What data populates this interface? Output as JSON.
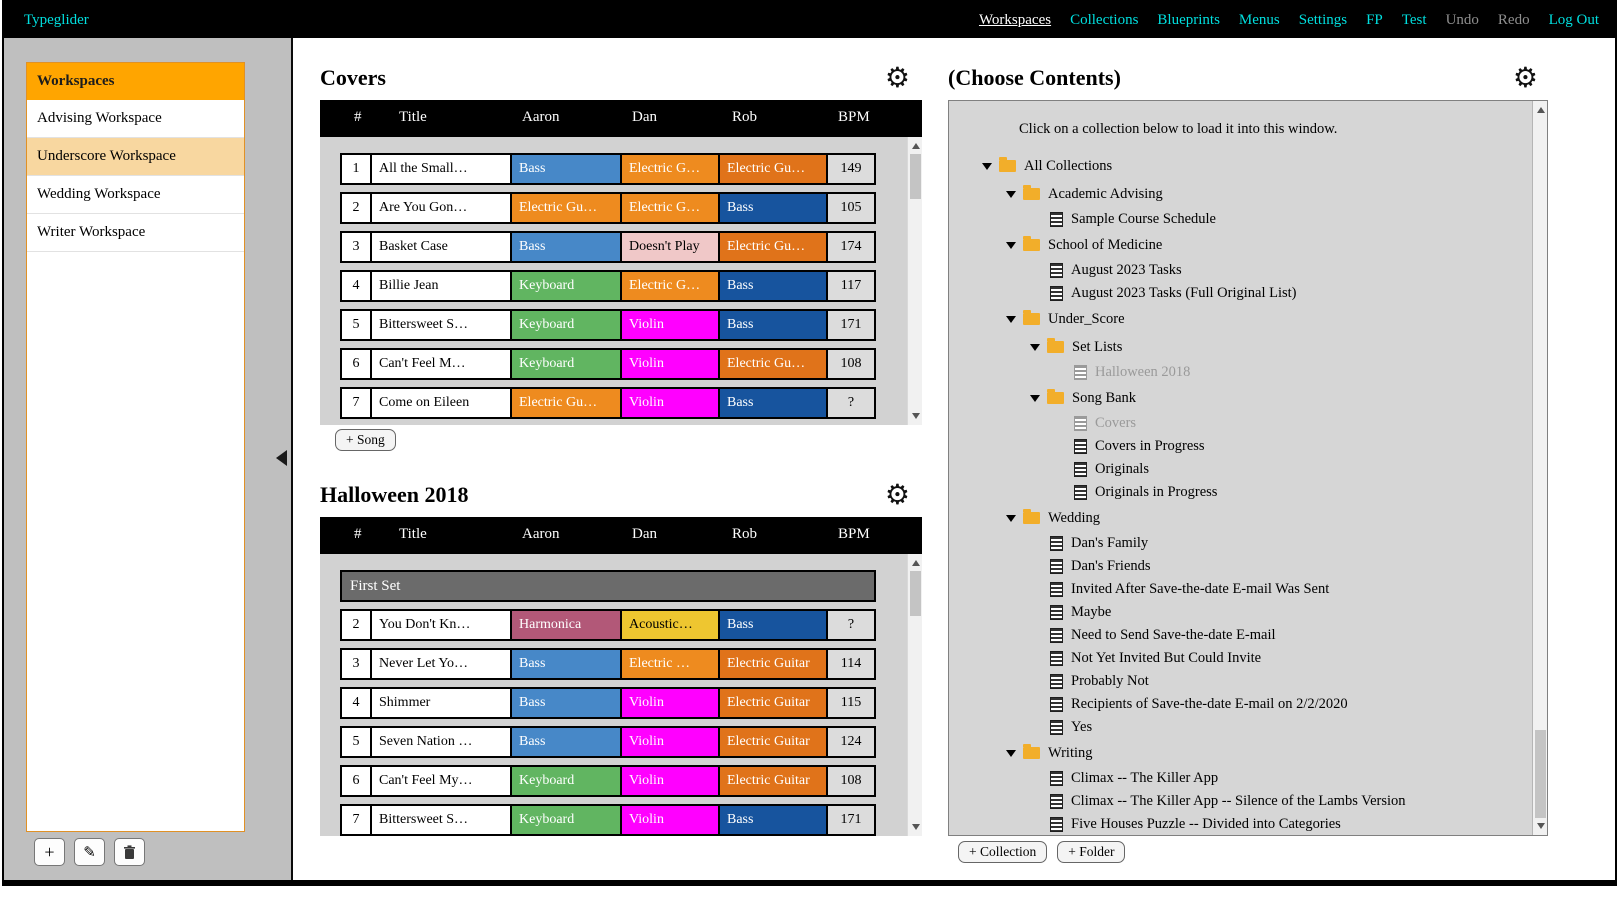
{
  "topbar": {
    "brand": "Typeglider",
    "nav": [
      {
        "label": "Workspaces",
        "state": "active"
      },
      {
        "label": "Collections",
        "state": "link"
      },
      {
        "label": "Blueprints",
        "state": "link"
      },
      {
        "label": "Menus",
        "state": "link"
      },
      {
        "label": "Settings",
        "state": "link"
      },
      {
        "label": "FP",
        "state": "link"
      },
      {
        "label": "Test",
        "state": "link"
      },
      {
        "label": "Undo",
        "state": "disabled"
      },
      {
        "label": "Redo",
        "state": "disabled"
      },
      {
        "label": "Log Out",
        "state": "link"
      }
    ]
  },
  "icons": {
    "gear": "⚙",
    "plus": "+",
    "pencil": "✎"
  },
  "sidebar": {
    "header": "Workspaces",
    "items": [
      {
        "label": "Advising Workspace",
        "selected": false
      },
      {
        "label": "Underscore Workspace",
        "selected": true
      },
      {
        "label": "Wedding Workspace",
        "selected": false
      },
      {
        "label": "Writer Workspace",
        "selected": false
      }
    ]
  },
  "colors": {
    "bass_light": "#4788c8",
    "bass_dark": "#17549e",
    "electric": "#ee8b1f",
    "electric_deep": "#e0731a",
    "keyboard": "#61b561",
    "violin": "#ff00ff",
    "doesnt_play": "#f0c8c8",
    "harmonica": "#b25878",
    "acoustic": "#eec630"
  },
  "song_tables": [
    {
      "title": "Covers",
      "columns": [
        "#",
        "Title",
        "Aaron",
        "Dan",
        "Rob",
        "BPM"
      ],
      "add_button": "+ Song",
      "rows": [
        {
          "num": "1",
          "title": "All the Small…",
          "aaron": {
            "t": "Bass",
            "c": "bass_light"
          },
          "dan": {
            "t": "Electric G…",
            "c": "electric"
          },
          "rob": {
            "t": "Electric Gu…",
            "c": "electric_deep"
          },
          "bpm": "149"
        },
        {
          "num": "2",
          "title": "Are You Gon…",
          "aaron": {
            "t": "Electric Gu…",
            "c": "electric"
          },
          "dan": {
            "t": "Electric G…",
            "c": "electric"
          },
          "rob": {
            "t": "Bass",
            "c": "bass_dark"
          },
          "bpm": "105"
        },
        {
          "num": "3",
          "title": "Basket Case",
          "aaron": {
            "t": "Bass",
            "c": "bass_light"
          },
          "dan": {
            "t": "Doesn't Play",
            "c": "doesnt_play",
            "fg": "dark"
          },
          "rob": {
            "t": "Electric Gu…",
            "c": "electric_deep"
          },
          "bpm": "174"
        },
        {
          "num": "4",
          "title": "Billie Jean",
          "aaron": {
            "t": "Keyboard",
            "c": "keyboard"
          },
          "dan": {
            "t": "Electric G…",
            "c": "electric"
          },
          "rob": {
            "t": "Bass",
            "c": "bass_dark"
          },
          "bpm": "117"
        },
        {
          "num": "5",
          "title": "Bittersweet S…",
          "aaron": {
            "t": "Keyboard",
            "c": "keyboard"
          },
          "dan": {
            "t": "Violin",
            "c": "violin"
          },
          "rob": {
            "t": "Bass",
            "c": "bass_dark"
          },
          "bpm": "171"
        },
        {
          "num": "6",
          "title": "Can't Feel M…",
          "aaron": {
            "t": "Keyboard",
            "c": "keyboard"
          },
          "dan": {
            "t": "Violin",
            "c": "violin"
          },
          "rob": {
            "t": "Electric Gu…",
            "c": "electric_deep"
          },
          "bpm": "108"
        },
        {
          "num": "7",
          "title": "Come on Eileen",
          "aaron": {
            "t": "Electric Gu…",
            "c": "electric"
          },
          "dan": {
            "t": "Violin",
            "c": "violin"
          },
          "rob": {
            "t": "Bass",
            "c": "bass_dark"
          },
          "bpm": "?"
        }
      ]
    },
    {
      "title": "Halloween 2018",
      "columns": [
        "#",
        "Title",
        "Aaron",
        "Dan",
        "Rob",
        "BPM"
      ],
      "rows": [
        {
          "section": "First Set"
        },
        {
          "num": "2",
          "title": "You Don't Kn…",
          "aaron": {
            "t": "Harmonica",
            "c": "harmonica"
          },
          "dan": {
            "t": "Acoustic…",
            "c": "acoustic",
            "fg": "dark"
          },
          "rob": {
            "t": "Bass",
            "c": "bass_dark"
          },
          "bpm": "?"
        },
        {
          "num": "3",
          "title": "Never Let Yo…",
          "aaron": {
            "t": "Bass",
            "c": "bass_light"
          },
          "dan": {
            "t": "Electric …",
            "c": "electric"
          },
          "rob": {
            "t": "Electric Guitar",
            "c": "electric_deep"
          },
          "bpm": "114"
        },
        {
          "num": "4",
          "title": "Shimmer",
          "aaron": {
            "t": "Bass",
            "c": "bass_light"
          },
          "dan": {
            "t": "Violin",
            "c": "violin"
          },
          "rob": {
            "t": "Electric Guitar",
            "c": "electric_deep"
          },
          "bpm": "115"
        },
        {
          "num": "5",
          "title": "Seven Nation …",
          "aaron": {
            "t": "Bass",
            "c": "bass_light"
          },
          "dan": {
            "t": "Violin",
            "c": "violin"
          },
          "rob": {
            "t": "Electric Guitar",
            "c": "electric_deep"
          },
          "bpm": "124"
        },
        {
          "num": "6",
          "title": "Can't Feel My…",
          "aaron": {
            "t": "Keyboard",
            "c": "keyboard"
          },
          "dan": {
            "t": "Violin",
            "c": "violin"
          },
          "rob": {
            "t": "Electric Guitar",
            "c": "electric_deep"
          },
          "bpm": "108"
        },
        {
          "num": "7",
          "title": "Bittersweet S…",
          "aaron": {
            "t": "Keyboard",
            "c": "keyboard"
          },
          "dan": {
            "t": "Violin",
            "c": "violin"
          },
          "rob": {
            "t": "Bass",
            "c": "bass_dark"
          },
          "bpm": "171"
        }
      ]
    }
  ],
  "collections": {
    "title": "(Choose Contents)",
    "instruction": "Click on a collection below to load it into this window.",
    "buttons": {
      "add_collection": "+ Collection",
      "add_folder": "+ Folder"
    },
    "tree": [
      {
        "type": "folder",
        "level": 0,
        "label": "All Collections"
      },
      {
        "type": "folder",
        "level": 1,
        "label": "Academic Advising"
      },
      {
        "type": "leaf",
        "level": 2,
        "label": "Sample Course Schedule"
      },
      {
        "type": "folder",
        "level": 1,
        "label": "School of Medicine"
      },
      {
        "type": "leaf",
        "level": 2,
        "label": "August 2023 Tasks"
      },
      {
        "type": "leaf",
        "level": 2,
        "label": "August 2023 Tasks (Full Original List)"
      },
      {
        "type": "folder",
        "level": 1,
        "label": "Under_Score"
      },
      {
        "type": "folder",
        "level": 2,
        "label": "Set Lists"
      },
      {
        "type": "leaf",
        "level": 3,
        "label": "Halloween 2018",
        "disabled": true
      },
      {
        "type": "folder",
        "level": 2,
        "label": "Song Bank"
      },
      {
        "type": "leaf",
        "level": 3,
        "label": "Covers",
        "disabled": true
      },
      {
        "type": "leaf",
        "level": 3,
        "label": "Covers in Progress"
      },
      {
        "type": "leaf",
        "level": 3,
        "label": "Originals"
      },
      {
        "type": "leaf",
        "level": 3,
        "label": "Originals in Progress"
      },
      {
        "type": "folder",
        "level": 1,
        "label": "Wedding"
      },
      {
        "type": "leaf",
        "level": 2,
        "label": "Dan's Family"
      },
      {
        "type": "leaf",
        "level": 2,
        "label": "Dan's Friends"
      },
      {
        "type": "leaf",
        "level": 2,
        "label": "Invited After Save-the-date E-mail Was Sent"
      },
      {
        "type": "leaf",
        "level": 2,
        "label": "Maybe"
      },
      {
        "type": "leaf",
        "level": 2,
        "label": "Need to Send Save-the-date E-mail"
      },
      {
        "type": "leaf",
        "level": 2,
        "label": "Not Yet Invited But Could Invite"
      },
      {
        "type": "leaf",
        "level": 2,
        "label": "Probably Not"
      },
      {
        "type": "leaf",
        "level": 2,
        "label": "Recipients of Save-the-date E-mail on 2/2/2020"
      },
      {
        "type": "leaf",
        "level": 2,
        "label": "Yes"
      },
      {
        "type": "folder",
        "level": 1,
        "label": "Writing"
      },
      {
        "type": "leaf",
        "level": 2,
        "label": "Climax -- The Killer App"
      },
      {
        "type": "leaf",
        "level": 2,
        "label": "Climax -- The Killer App -- Silence of the Lambs Version"
      },
      {
        "type": "leaf",
        "level": 2,
        "label": "Five Houses Puzzle -- Divided into Categories"
      }
    ]
  }
}
